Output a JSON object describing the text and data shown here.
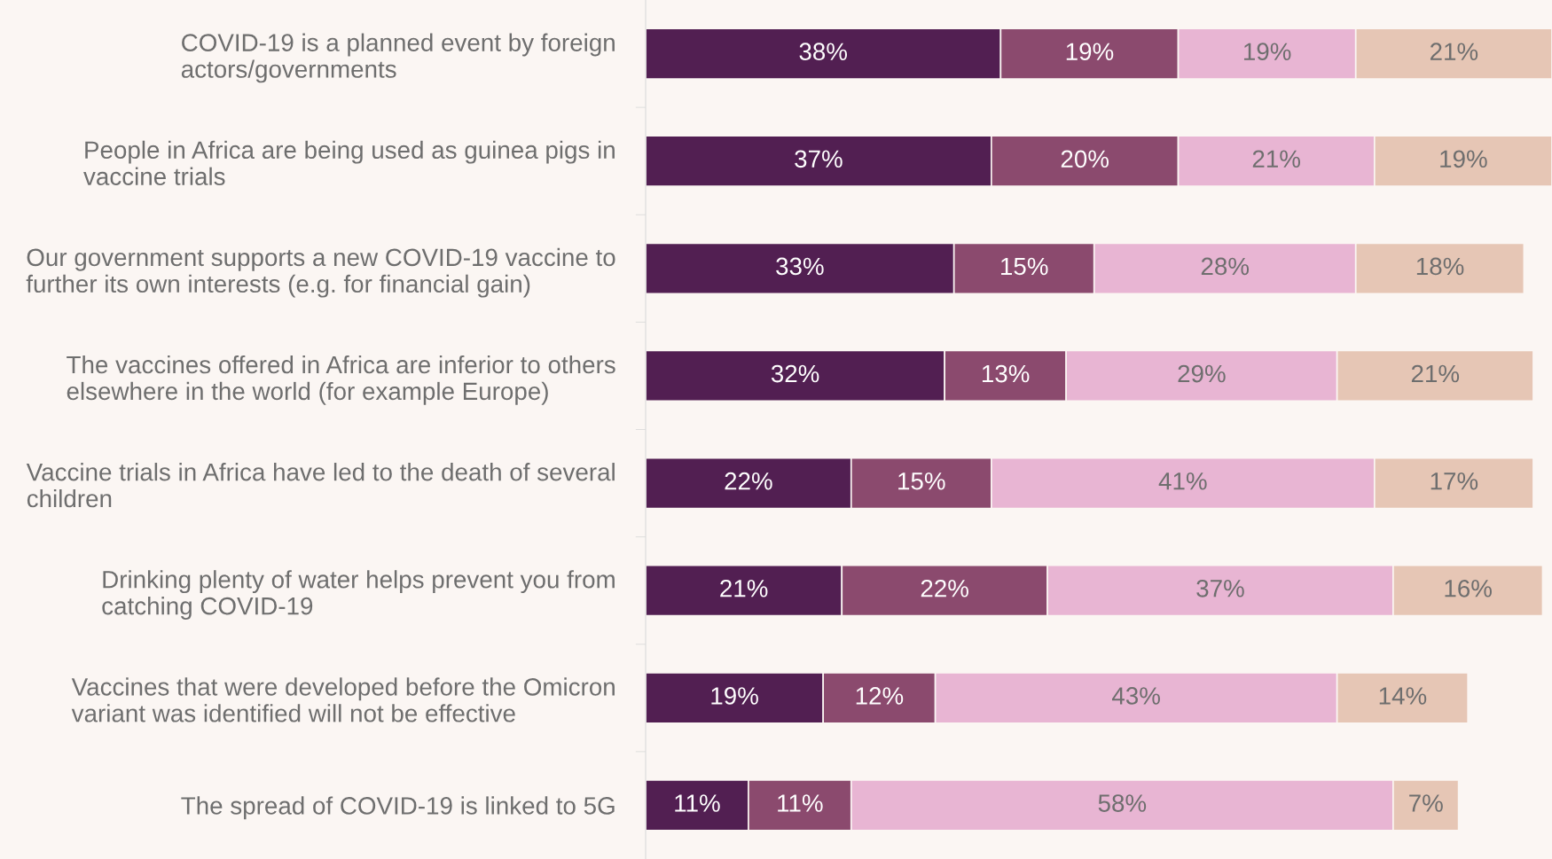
{
  "chart_data": {
    "type": "bar",
    "orientation": "horizontal",
    "stacked": true,
    "grid": false,
    "legend": false,
    "categories": [
      "COVID-19 is a planned event by foreign\nactors/governments",
      "People in Africa are being used as guinea pigs in\nvaccine trials",
      "Our government supports a new COVID-19 vaccine to\nfurther its own interests (e.g. for financial gain)",
      "The vaccines offered in Africa are inferior to others\nelsewhere in the world (for example Europe)",
      "Vaccine trials in Africa have led to the death of several\nchildren",
      "Drinking plenty of water helps prevent you from\ncatching COVID-19",
      "Vaccines that were developed before the Omicron\nvariant was identified will not be effective",
      "The spread of COVID-19 is linked to 5G"
    ],
    "series": [
      {
        "color": "#521f52",
        "values": [
          38,
          37,
          33,
          32,
          22,
          21,
          19,
          11
        ],
        "value_labels": [
          "38%",
          "37%",
          "33%",
          "32%",
          "22%",
          "21%",
          "19%",
          "11%"
        ]
      },
      {
        "color": "#8b4a6e",
        "values": [
          19,
          20,
          15,
          13,
          15,
          22,
          12,
          11
        ],
        "value_labels": [
          "19%",
          "20%",
          "15%",
          "13%",
          "15%",
          "22%",
          "12%",
          "11%"
        ]
      },
      {
        "color": "#e8b5d3",
        "values": [
          19,
          21,
          28,
          29,
          41,
          37,
          43,
          58
        ],
        "value_labels": [
          "19%",
          "21%",
          "28%",
          "29%",
          "41%",
          "37%",
          "43%",
          "58%"
        ]
      },
      {
        "color": "#e6c6b5",
        "values": [
          21,
          19,
          18,
          21,
          17,
          16,
          14,
          7
        ],
        "value_labels": [
          "21%",
          "19%",
          "18%",
          "21%",
          "17%",
          "16%",
          "14%",
          "7%"
        ]
      }
    ]
  }
}
